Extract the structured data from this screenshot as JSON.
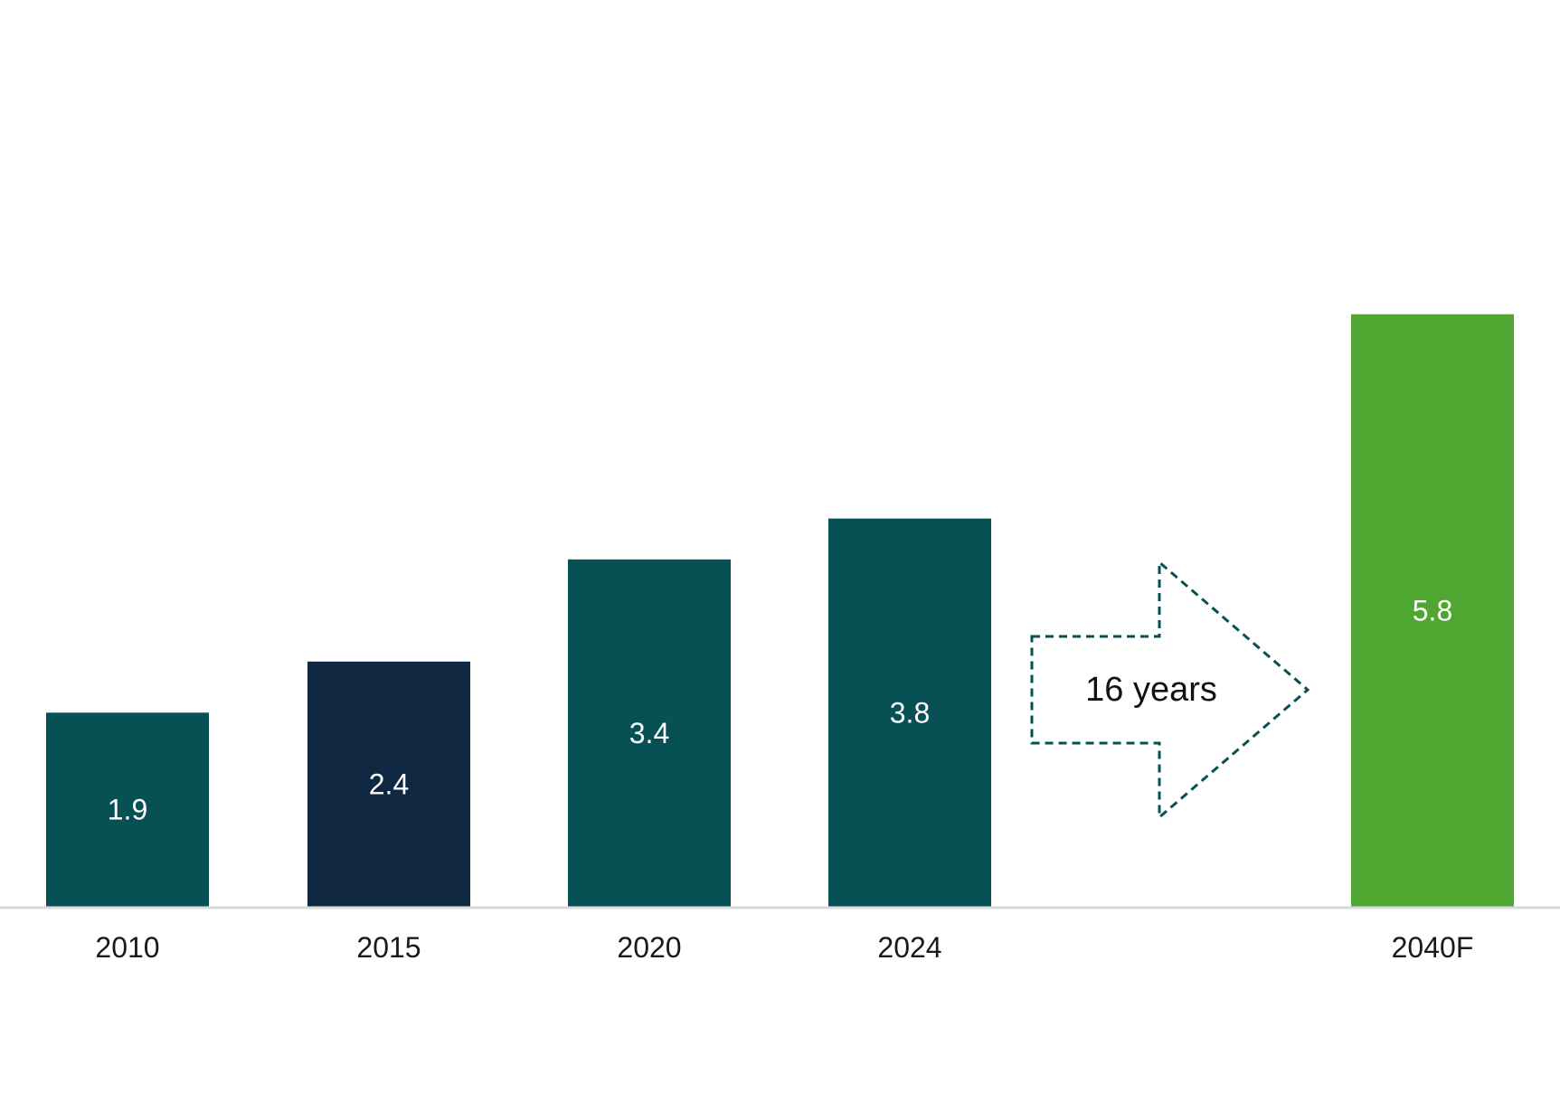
{
  "chart_data": {
    "type": "bar",
    "title": "",
    "xlabel": "",
    "ylabel": "",
    "ylim": [
      0,
      6.5
    ],
    "grid": false,
    "legend": "none",
    "categories": [
      "2010",
      "2015",
      "2020",
      "2024",
      "2040F"
    ],
    "values": [
      1.9,
      2.4,
      3.4,
      3.8,
      5.8
    ],
    "value_labels": [
      "1.9",
      "2.4",
      "3.4",
      "3.8",
      "5.8"
    ],
    "bar_colors": [
      "#075154",
      "#0f2740",
      "#075154",
      "#075154",
      "#4fa731"
    ],
    "annotation": {
      "type": "arrow",
      "text": "16 years",
      "from": "2024",
      "to": "2040F",
      "style": "dashed",
      "color": "#075154"
    }
  },
  "colors": {
    "background": "#ffffff",
    "baseline": "#d9d9d9",
    "label_text": "#ffffff",
    "tick_text": "#1a1a1a"
  }
}
